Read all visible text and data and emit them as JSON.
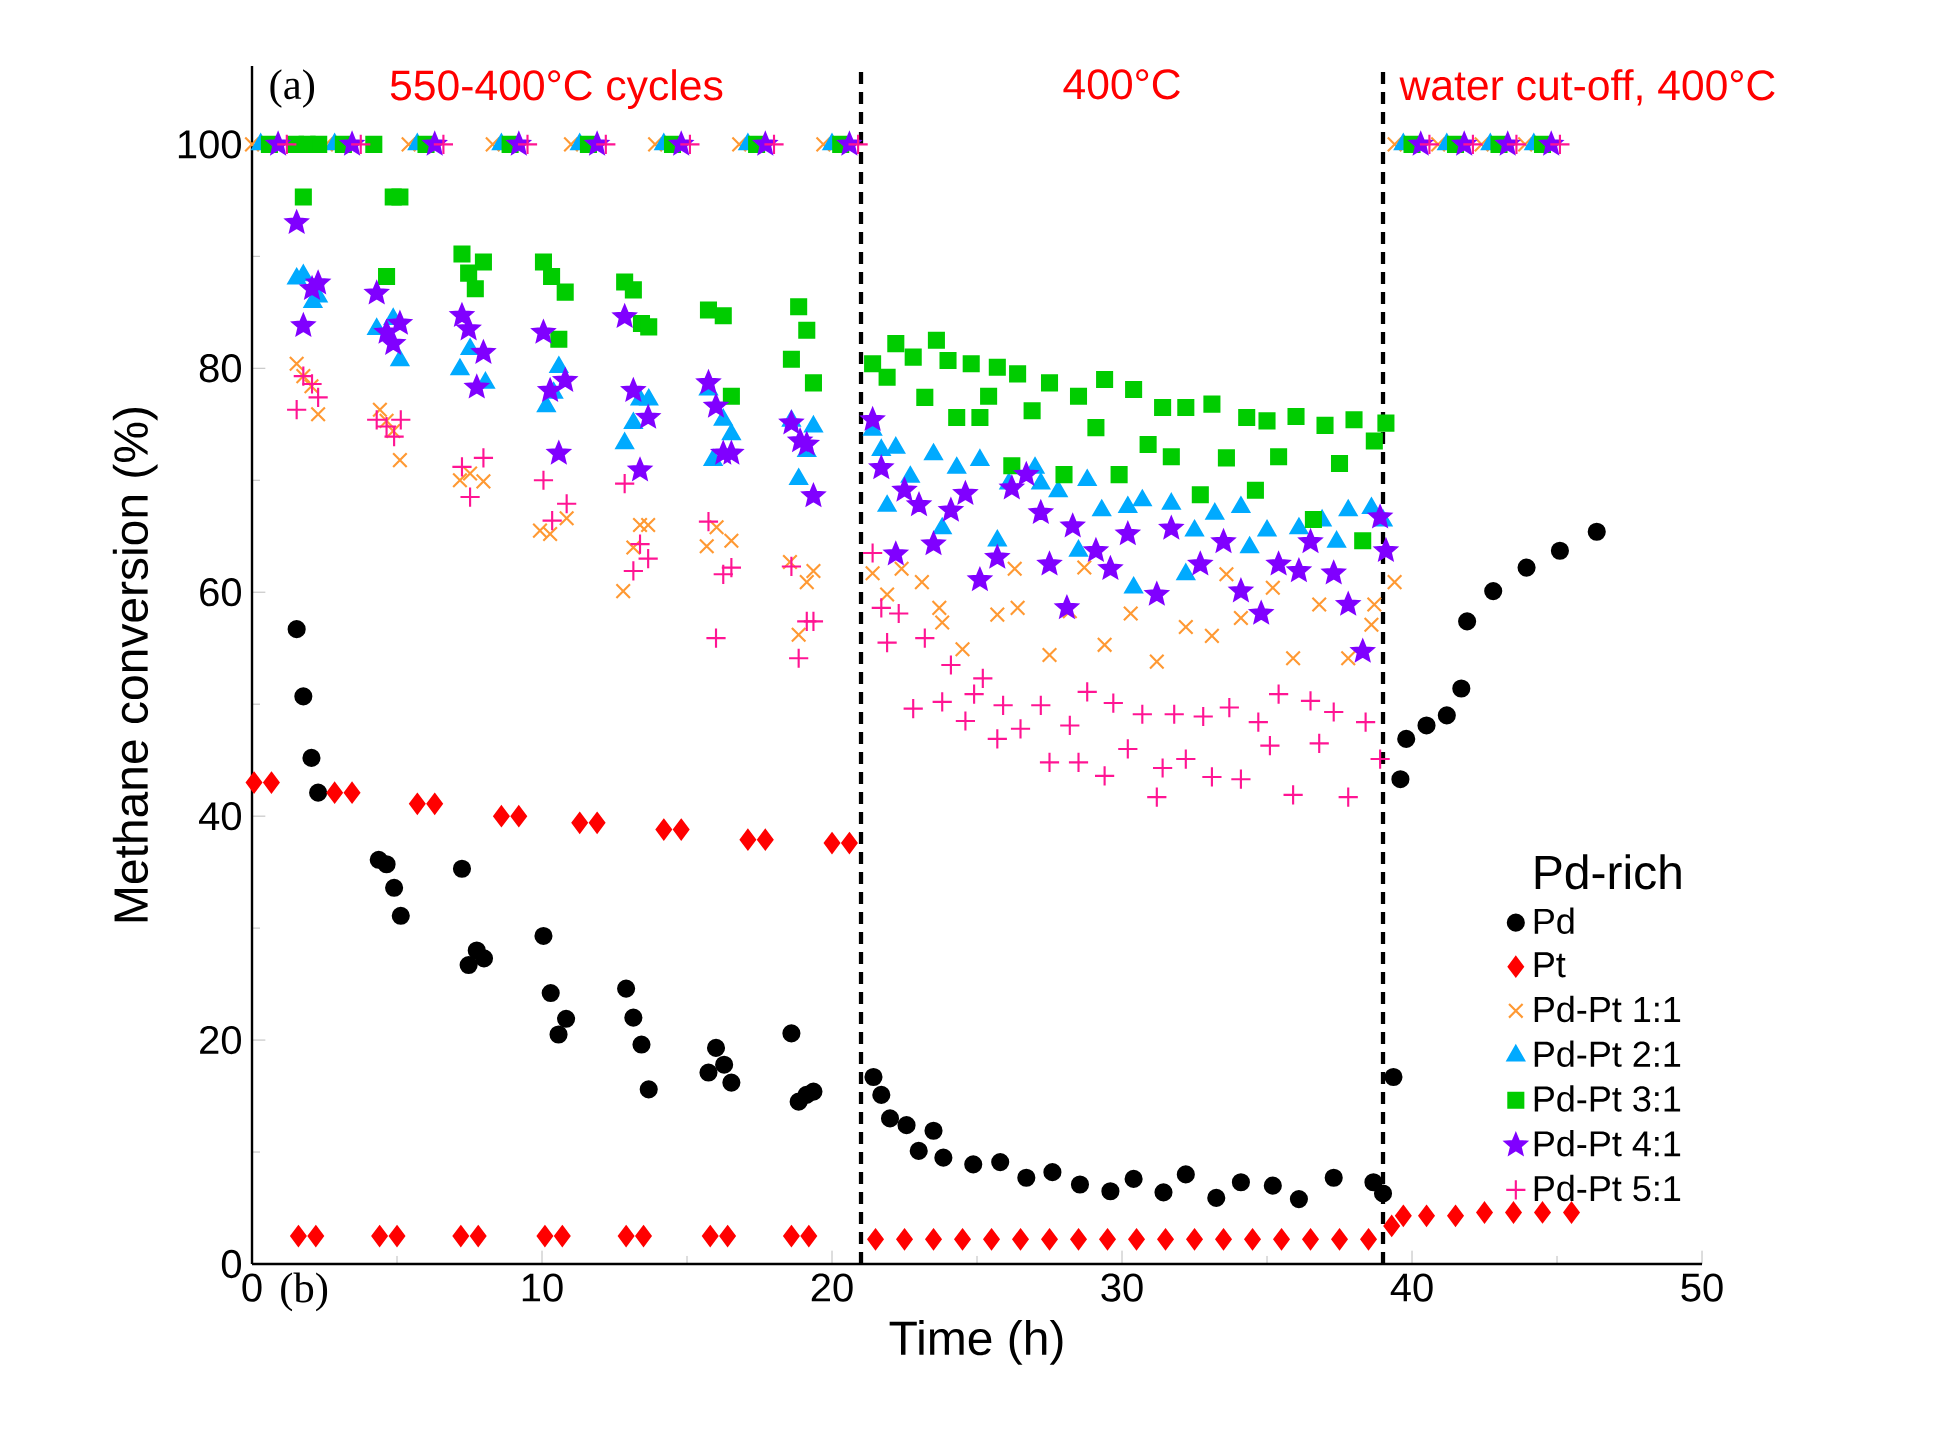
{
  "chart_data": {
    "type": "scatter",
    "xlabel": "Time (h)",
    "ylabel": "Methane conversion (%)",
    "legend_title": "Pd-rich",
    "xlim": [
      0,
      50
    ],
    "ylim": [
      0,
      107
    ],
    "xticks": [
      0,
      10,
      20,
      30,
      40,
      50
    ],
    "yticks": [
      0,
      20,
      40,
      60,
      80,
      100
    ],
    "legend": "bottom right",
    "annotations": [
      "(a)",
      "(b)",
      "550-400°C cycles",
      "400°C",
      "water cut-off, 400°C"
    ],
    "ref_lines": [
      {
        "axis": "x",
        "value": 21,
        "color": "#000000",
        "line_style": "dashed"
      },
      {
        "axis": "x",
        "value": 39,
        "color": "#000000",
        "line_style": "dashed"
      }
    ],
    "series": [
      {
        "name": "Pd",
        "color": "#000000",
        "marker": "circle",
        "x": [
          1.54,
          1.77,
          2.05,
          2.28,
          4.37,
          4.64,
          4.9,
          5.13,
          7.24,
          7.47,
          7.75,
          8.0,
          10.05,
          10.3,
          10.57,
          10.83,
          12.9,
          13.15,
          13.43,
          13.68,
          15.74,
          16.0,
          16.28,
          16.53,
          18.6,
          18.85,
          19.12,
          19.36,
          21.43,
          21.7,
          22.0,
          22.57,
          22.99,
          23.5,
          23.84,
          24.87,
          25.8,
          26.7,
          27.6,
          28.55,
          29.6,
          30.4,
          31.43,
          32.2,
          33.25,
          34.1,
          35.2,
          36.1,
          37.3,
          38.67,
          39.0,
          39.36,
          39.6,
          39.8,
          40.5,
          41.2,
          41.7,
          41.9,
          42.8,
          43.95,
          45.1,
          46.37
        ],
        "values": [
          56.7,
          50.7,
          45.2,
          42.1,
          36.1,
          35.7,
          33.6,
          31.1,
          35.3,
          26.7,
          28.0,
          27.3,
          29.3,
          24.2,
          20.5,
          21.9,
          24.6,
          22.0,
          19.6,
          15.6,
          17.1,
          19.3,
          17.8,
          16.2,
          20.6,
          14.5,
          15.1,
          15.4,
          16.7,
          15.1,
          13.0,
          12.4,
          10.1,
          11.9,
          9.5,
          8.9,
          9.1,
          7.7,
          8.2,
          7.1,
          6.5,
          7.6,
          6.4,
          8.0,
          5.9,
          7.3,
          7.0,
          5.8,
          7.7,
          7.3,
          6.3,
          16.7,
          43.3,
          46.9,
          48.1,
          49.0,
          51.4,
          57.4,
          60.1,
          62.2,
          63.7,
          65.4
        ]
      },
      {
        "name": "Pt",
        "color": "#ff0000",
        "marker": "diamond",
        "x": [
          0.07,
          0.67,
          2.85,
          3.45,
          5.7,
          6.3,
          8.6,
          9.2,
          11.3,
          11.9,
          14.2,
          14.8,
          17.1,
          17.7,
          20.0,
          20.6,
          1.6,
          2.2,
          4.4,
          5.0,
          7.2,
          7.8,
          10.1,
          10.7,
          12.9,
          13.5,
          15.8,
          16.4,
          18.6,
          19.2,
          21.5,
          22.5,
          23.5,
          24.5,
          25.5,
          26.5,
          27.5,
          28.5,
          29.5,
          30.5,
          31.5,
          32.5,
          33.5,
          34.5,
          35.5,
          36.5,
          37.5,
          38.5,
          39.3,
          39.7,
          40.5,
          41.5,
          42.5,
          43.5,
          44.5,
          45.5
        ],
        "values": [
          43.0,
          43.0,
          42.1,
          42.1,
          41.1,
          41.1,
          40.0,
          40.0,
          39.4,
          39.4,
          38.8,
          38.8,
          37.9,
          37.9,
          37.6,
          37.6,
          2.5,
          2.5,
          2.5,
          2.5,
          2.5,
          2.5,
          2.5,
          2.5,
          2.5,
          2.5,
          2.5,
          2.5,
          2.5,
          2.5,
          2.2,
          2.2,
          2.2,
          2.2,
          2.2,
          2.2,
          2.2,
          2.2,
          2.2,
          2.2,
          2.2,
          2.2,
          2.2,
          2.2,
          2.2,
          2.2,
          2.2,
          2.2,
          3.4,
          4.3,
          4.3,
          4.3,
          4.6,
          4.6,
          4.6,
          4.6
        ]
      },
      {
        "name": "Pd-Pt 1:1",
        "color": "#ff9933",
        "marker": "cross",
        "x": [
          0.0,
          2.55,
          5.4,
          8.3,
          11.0,
          13.9,
          16.8,
          19.7,
          39.4,
          40.9,
          42.4,
          43.9,
          1.54,
          1.77,
          2.05,
          2.28,
          4.41,
          4.64,
          4.87,
          5.1,
          7.17,
          7.52,
          7.98,
          9.93,
          10.28,
          10.85,
          12.8,
          13.15,
          13.38,
          13.66,
          15.68,
          16.02,
          16.53,
          18.55,
          19.13,
          19.36,
          18.85,
          21.4,
          21.9,
          22.4,
          23.1,
          23.7,
          23.8,
          24.5,
          25.7,
          26.3,
          26.4,
          27.5,
          28.2,
          28.7,
          29.4,
          30.3,
          31.2,
          32.2,
          33.1,
          33.6,
          34.1,
          35.2,
          35.9,
          36.8,
          37.8,
          38.7,
          38.6,
          39.4
        ],
        "values": [
          100,
          100,
          100,
          100,
          100,
          100,
          100,
          100,
          100,
          100,
          100,
          100,
          80.4,
          79.3,
          78.4,
          75.9,
          76.3,
          75.3,
          74.4,
          71.8,
          70.0,
          70.6,
          69.9,
          65.5,
          65.2,
          66.6,
          60.1,
          64.0,
          66.0,
          66.0,
          64.1,
          65.8,
          64.6,
          62.7,
          60.9,
          61.9,
          56.2,
          61.7,
          59.8,
          62.1,
          60.9,
          58.6,
          57.3,
          54.9,
          58.0,
          62.1,
          58.6,
          54.4,
          58.3,
          62.2,
          55.3,
          58.1,
          53.8,
          56.9,
          56.1,
          61.6,
          57.7,
          60.4,
          54.1,
          58.9,
          54.1,
          58.9,
          57.1,
          60.9
        ]
      },
      {
        "name": "Pd-Pt 2:1",
        "color": "#00aaff",
        "marker": "triangle",
        "x": [
          0.3,
          2.85,
          5.7,
          8.6,
          11.3,
          14.2,
          17.1,
          20.0,
          39.7,
          41.2,
          42.7,
          44.2,
          1.54,
          1.77,
          2.1,
          2.28,
          4.3,
          4.87,
          5.1,
          7.17,
          7.52,
          8.05,
          10.15,
          10.58,
          10.4,
          12.85,
          13.15,
          13.38,
          13.68,
          15.9,
          15.74,
          16.25,
          16.53,
          18.6,
          18.85,
          19.13,
          19.36,
          21.4,
          21.7,
          22.2,
          21.9,
          22.7,
          23.5,
          23.8,
          24.3,
          25.1,
          25.7,
          26.1,
          27.0,
          27.2,
          27.8,
          28.5,
          28.8,
          29.3,
          30.2,
          30.4,
          30.7,
          31.7,
          32.2,
          32.5,
          33.2,
          34.1,
          34.4,
          35.0,
          36.1,
          36.9,
          37.4,
          37.8,
          38.6,
          39.0
        ],
        "values": [
          100,
          100,
          100,
          100,
          100,
          100,
          100,
          100,
          100,
          100,
          100,
          100,
          88.0,
          88.3,
          85.9,
          86.4,
          83.5,
          84.4,
          80.7,
          79.9,
          81.7,
          78.7,
          76.6,
          80.1,
          77.8,
          73.3,
          75.1,
          77.2,
          77.2,
          71.8,
          78.1,
          75.4,
          74.1,
          75.3,
          70.1,
          72.6,
          74.8,
          74.5,
          72.7,
          72.9,
          67.7,
          70.3,
          72.3,
          65.7,
          71.1,
          71.8,
          64.6,
          69.7,
          71.1,
          69.7,
          69.0,
          63.7,
          70.0,
          67.3,
          67.6,
          60.4,
          68.2,
          67.9,
          61.6,
          65.5,
          67.0,
          67.6,
          64.0,
          65.5,
          65.7,
          66.4,
          64.5,
          67.3,
          67.5,
          66.4
        ]
      },
      {
        "name": "Pd-Pt 3:1",
        "color": "#00cc00",
        "marker": "square",
        "x": [
          0.6,
          3.15,
          6.0,
          8.9,
          11.6,
          14.5,
          17.4,
          20.3,
          40.0,
          41.5,
          43.0,
          44.5,
          1.5,
          1.9,
          2.3,
          4.2,
          1.77,
          4.87,
          5.1,
          4.64,
          7.24,
          7.98,
          7.47,
          7.7,
          10.05,
          10.33,
          10.8,
          10.58,
          12.85,
          13.15,
          13.43,
          13.68,
          15.74,
          16.25,
          16.53,
          18.85,
          19.13,
          18.6,
          19.36,
          21.4,
          22.2,
          21.9,
          22.8,
          23.2,
          23.6,
          24.0,
          24.3,
          24.8,
          25.1,
          25.4,
          25.7,
          26.2,
          26.4,
          26.9,
          27.5,
          28.0,
          28.5,
          29.1,
          29.4,
          29.9,
          30.4,
          30.9,
          31.4,
          31.7,
          32.2,
          32.7,
          33.1,
          33.6,
          34.3,
          34.6,
          35.0,
          35.4,
          36.0,
          36.6,
          37.0,
          37.5,
          38.0,
          38.3,
          38.7,
          39.1
        ],
        "values": [
          100,
          100,
          100,
          100,
          100,
          100,
          100,
          100,
          100,
          100,
          100,
          100,
          100,
          100,
          100,
          100,
          95.3,
          95.3,
          95.3,
          88.2,
          90.2,
          89.5,
          88.5,
          87.1,
          89.5,
          88.2,
          86.8,
          82.6,
          87.7,
          87.0,
          84.0,
          83.7,
          85.2,
          84.7,
          77.5,
          85.5,
          83.4,
          80.8,
          78.7,
          80.4,
          82.2,
          79.2,
          81.0,
          77.4,
          82.5,
          80.7,
          75.6,
          80.4,
          75.6,
          77.5,
          80.1,
          71.3,
          79.5,
          76.2,
          78.7,
          70.5,
          77.5,
          74.7,
          79.0,
          70.5,
          78.1,
          73.2,
          76.5,
          72.1,
          76.5,
          68.7,
          76.8,
          72.0,
          75.6,
          69.1,
          75.3,
          72.1,
          75.7,
          66.5,
          74.9,
          71.5,
          75.4,
          64.6,
          73.5,
          75.1
        ]
      },
      {
        "name": "Pd-Pt 4:1",
        "color": "#8000ff",
        "marker": "star",
        "x": [
          0.9,
          3.45,
          6.3,
          9.2,
          11.9,
          14.8,
          17.7,
          20.6,
          40.3,
          41.8,
          43.3,
          44.8,
          1.54,
          2.07,
          2.28,
          1.77,
          4.3,
          4.64,
          4.87,
          5.1,
          7.24,
          7.47,
          7.98,
          7.75,
          10.05,
          10.28,
          10.8,
          10.58,
          12.85,
          13.15,
          13.66,
          13.38,
          15.74,
          16.0,
          16.25,
          16.53,
          18.6,
          18.9,
          19.13,
          19.36,
          21.4,
          21.7,
          22.2,
          22.5,
          23.0,
          23.5,
          24.1,
          24.6,
          25.1,
          25.7,
          26.2,
          26.7,
          27.2,
          27.5,
          28.3,
          28.1,
          29.1,
          29.6,
          30.2,
          31.2,
          31.7,
          32.7,
          33.5,
          34.1,
          34.8,
          35.4,
          36.1,
          36.5,
          37.3,
          37.8,
          38.3,
          38.9,
          39.1
        ],
        "values": [
          100,
          100,
          100,
          100,
          100,
          100,
          100,
          100,
          100,
          100,
          100,
          100,
          93.0,
          87.1,
          87.6,
          83.8,
          86.7,
          83.2,
          82.2,
          84.0,
          84.7,
          83.5,
          81.4,
          78.3,
          83.2,
          78.0,
          78.9,
          72.4,
          84.6,
          78.0,
          75.6,
          70.9,
          78.7,
          76.6,
          72.4,
          72.4,
          75.1,
          73.5,
          73.2,
          68.6,
          75.4,
          71.1,
          63.4,
          69.1,
          67.8,
          64.3,
          67.3,
          68.8,
          61.1,
          63.1,
          69.3,
          70.5,
          67.1,
          62.5,
          65.9,
          58.6,
          63.7,
          62.1,
          65.2,
          59.8,
          65.7,
          62.5,
          64.5,
          60.1,
          58.1,
          62.5,
          61.9,
          64.5,
          61.7,
          58.9,
          54.7,
          66.7,
          63.7
        ]
      },
      {
        "name": "Pd-Pt 5:1",
        "color": "#ff1493",
        "marker": "plus",
        "x": [
          1.2,
          3.75,
          6.6,
          9.5,
          12.2,
          15.1,
          18.0,
          20.9,
          40.6,
          42.1,
          43.6,
          45.1,
          1.54,
          1.77,
          2.07,
          2.28,
          4.3,
          4.64,
          4.9,
          5.13,
          7.24,
          7.52,
          7.98,
          10.05,
          10.35,
          10.85,
          12.85,
          13.38,
          13.15,
          13.66,
          15.74,
          16.0,
          16.25,
          16.53,
          18.6,
          18.85,
          19.13,
          19.36,
          21.4,
          21.7,
          22.3,
          21.9,
          23.2,
          24.1,
          24.9,
          25.2,
          25.9,
          22.8,
          23.8,
          24.6,
          25.7,
          26.5,
          27.2,
          27.5,
          28.2,
          28.5,
          28.8,
          29.4,
          29.7,
          30.2,
          30.7,
          31.2,
          31.4,
          31.8,
          32.2,
          32.8,
          33.1,
          33.7,
          34.1,
          34.7,
          35.1,
          35.4,
          35.9,
          36.5,
          36.8,
          37.3,
          37.8,
          38.4,
          38.9
        ],
        "values": [
          100,
          100,
          100,
          100,
          100,
          100,
          100,
          100,
          100,
          100,
          100,
          100,
          76.3,
          79.3,
          78.6,
          77.4,
          75.4,
          74.8,
          73.9,
          75.4,
          71.2,
          68.5,
          72.0,
          70.0,
          66.4,
          67.9,
          69.7,
          64.3,
          61.9,
          63.0,
          66.3,
          55.9,
          61.6,
          62.2,
          62.3,
          54.1,
          57.4,
          57.4,
          63.5,
          58.6,
          58.1,
          55.5,
          55.9,
          53.5,
          50.9,
          52.3,
          49.9,
          49.6,
          50.2,
          48.5,
          46.9,
          47.8,
          49.9,
          44.8,
          48.1,
          44.8,
          51.1,
          43.6,
          50.1,
          46.0,
          49.1,
          41.7,
          44.3,
          49.1,
          45.1,
          48.9,
          43.5,
          49.7,
          43.3,
          48.4,
          46.3,
          50.9,
          41.9,
          50.3,
          46.5,
          49.3,
          41.7,
          48.4,
          45.1
        ]
      }
    ]
  }
}
